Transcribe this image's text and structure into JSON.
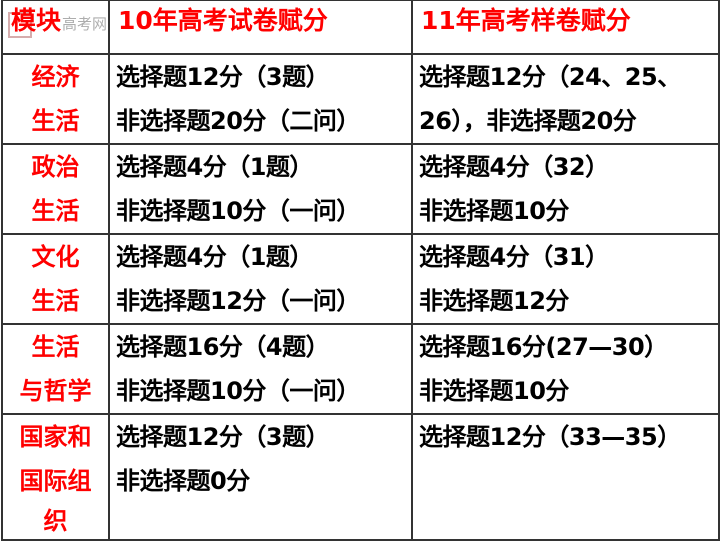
{
  "watermark": "高考网",
  "headers": [
    "模块",
    "10年高考试卷赋分",
    "11年高考样卷赋分"
  ],
  "rows": [
    {
      "module": [
        "经济",
        "生活"
      ],
      "y10": [
        "选择题12分（3题）",
        "非选择题20分（二问）"
      ],
      "y11": [
        "选择题12分（24、25、",
        "26），非选择题20分"
      ]
    },
    {
      "module": [
        "政治",
        "生活"
      ],
      "y10": [
        "选择题4分（1题）",
        "非选择题10分（一问）"
      ],
      "y11": [
        "选择题4分（32）",
        "非选择题10分"
      ]
    },
    {
      "module": [
        "文化",
        "生活"
      ],
      "y10": [
        "选择题4分（1题）",
        "非选择题12分（一问）"
      ],
      "y11": [
        "选择题4分（31）",
        "非选择题12分"
      ]
    },
    {
      "module": [
        "生活",
        "与哲学"
      ],
      "y10": [
        "选择题16分（4题）",
        "非选择题10分（一问）"
      ],
      "y11": [
        "选择题16分(27—30）",
        "非选择题10分"
      ]
    },
    {
      "module": [
        "国家和",
        "国际组",
        "织"
      ],
      "y10": [
        "选择题12分（3题）",
        "非选择题0分"
      ],
      "y11": [
        "选择题12分（33—35）"
      ]
    }
  ]
}
